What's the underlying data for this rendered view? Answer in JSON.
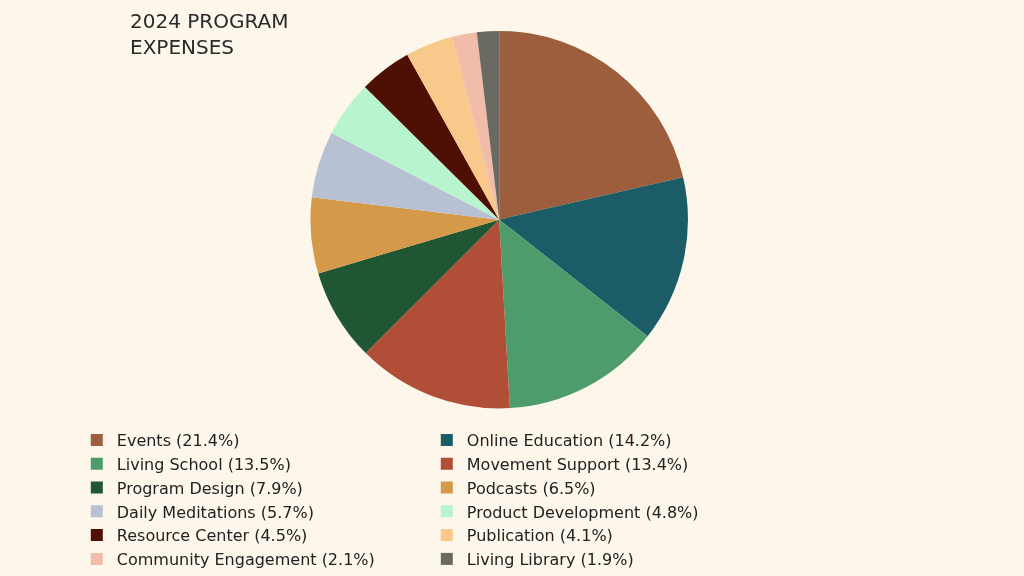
{
  "chart_data": {
    "type": "pie",
    "title": "2024 PROGRAM\nEXPENSES",
    "categories": [
      "Events (21.4%)",
      "Online Education (14.2%)",
      "Living School (13.5%)",
      "Movement Support (13.4%)",
      "Program Design (7.9%)",
      "Podcasts (6.5%)",
      "Daily Meditations (5.7%)",
      "Product Development (4.8%)",
      "Resource Center (4.5%)",
      "Publication (4.1%)",
      "Community Engagement (2.1%)",
      "Living Library (1.9%)"
    ],
    "values": [
      21.4,
      14.2,
      13.5,
      13.4,
      7.9,
      6.5,
      5.7,
      4.8,
      4.5,
      4.1,
      2.1,
      1.9
    ],
    "colors": [
      "#9c5e3c",
      "#1c5c66",
      "#4e9c6b",
      "#b04e37",
      "#205633",
      "#d49a4a",
      "#b8c0d4",
      "#b8f5cf",
      "#4e1004",
      "#f8c98a",
      "#f2bcaa",
      "#6b6a62"
    ],
    "legend": "bottom"
  }
}
